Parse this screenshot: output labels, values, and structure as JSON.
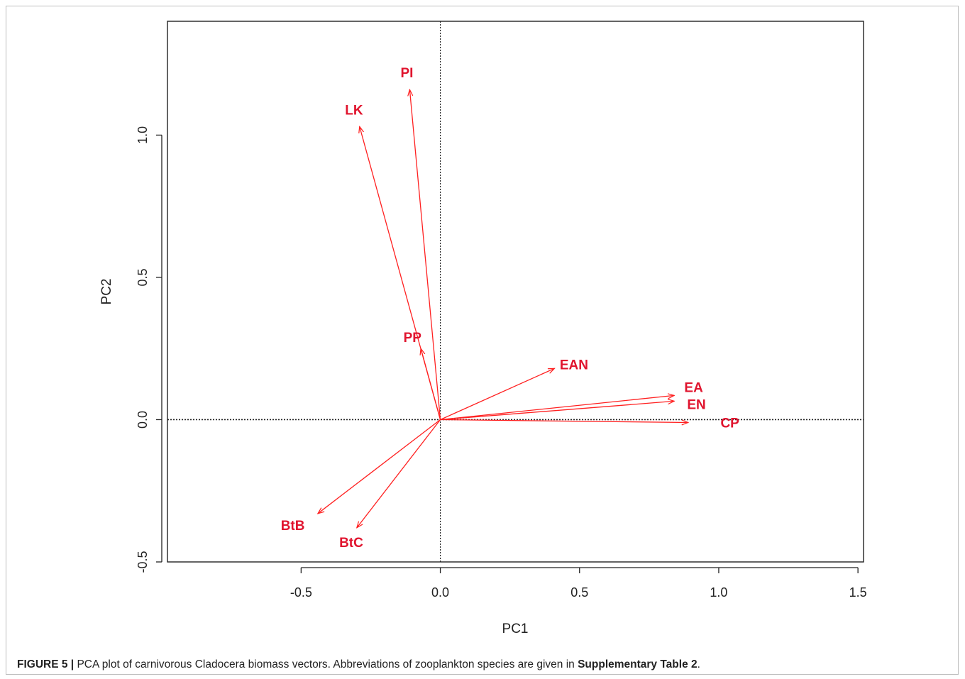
{
  "chart_data": {
    "type": "scatter",
    "subtype": "pca-biplot-loading-vectors",
    "xlabel": "PC1",
    "ylabel": "PC2",
    "xlim": [
      -0.98,
      1.52
    ],
    "ylim": [
      -0.5,
      1.4
    ],
    "x_ticks": [
      -0.5,
      0.0,
      0.5,
      1.0,
      1.5
    ],
    "x_tick_labels": [
      "-0.5",
      "0.0",
      "0.5",
      "1.0",
      "1.5"
    ],
    "y_ticks": [
      -0.5,
      0.0,
      0.5,
      1.0
    ],
    "y_tick_labels": [
      "-0.5",
      "0.0",
      "0.5",
      "1.0"
    ],
    "grid": false,
    "reference_lines": {
      "x": 0,
      "y": 0,
      "style": "dotted"
    },
    "vector_color": "#ff2020",
    "label_color": "#e0142e",
    "vectors": [
      {
        "label": "PI",
        "x": -0.11,
        "y": 1.16,
        "label_x": -0.12,
        "label_y": 1.22
      },
      {
        "label": "LK",
        "x": -0.29,
        "y": 1.03,
        "label_x": -0.31,
        "label_y": 1.09
      },
      {
        "label": "PP",
        "x": -0.07,
        "y": 0.25,
        "label_x": -0.1,
        "label_y": 0.29
      },
      {
        "label": "EAN",
        "x": 0.41,
        "y": 0.18,
        "label_x": 0.48,
        "label_y": 0.195
      },
      {
        "label": "EA",
        "x": 0.84,
        "y": 0.085,
        "label_x": 0.91,
        "label_y": 0.115
      },
      {
        "label": "EN",
        "x": 0.84,
        "y": 0.065,
        "label_x": 0.92,
        "label_y": 0.055
      },
      {
        "label": "CP",
        "x": 0.89,
        "y": -0.01,
        "label_x": 1.04,
        "label_y": -0.01
      },
      {
        "label": "BtB",
        "x": -0.44,
        "y": -0.33,
        "label_x": -0.53,
        "label_y": -0.37
      },
      {
        "label": "BtC",
        "x": -0.3,
        "y": -0.38,
        "label_x": -0.32,
        "label_y": -0.43
      }
    ]
  },
  "caption": {
    "label": "FIGURE 5 |",
    "text_before": " PCA plot of carnivorous Cladocera biomass vectors. Abbreviations of zooplankton species are given in ",
    "reference": "Supplementary Table 2",
    "text_after": "."
  }
}
